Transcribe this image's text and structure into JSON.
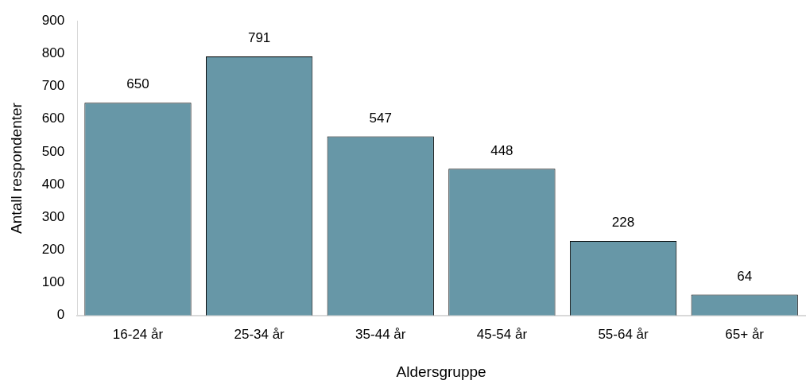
{
  "chart_data": {
    "type": "bar",
    "xlabel": "Aldersgruppe",
    "ylabel": "Antall respondenter",
    "categories": [
      "16-24 år",
      "25-34 år",
      "35-44 år",
      "45-54 år",
      "55-64 år",
      "65+ år"
    ],
    "values": [
      650,
      791,
      547,
      448,
      228,
      64
    ],
    "color": "#6797a7",
    "ylim": [
      0,
      900
    ],
    "yticks": [
      0,
      100,
      200,
      300,
      400,
      500,
      600,
      700,
      800,
      900
    ],
    "grid": false,
    "legend": false,
    "data_labels": true
  }
}
